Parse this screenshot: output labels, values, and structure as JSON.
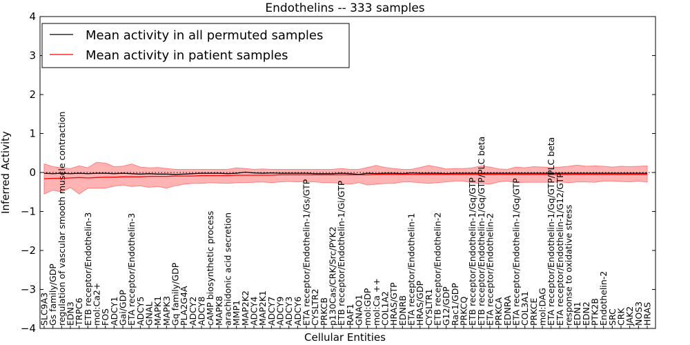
{
  "chart_data": {
    "type": "line",
    "title": "Endothelins -- 333 samples",
    "xlabel": "Cellular Entities",
    "ylabel": "Inferred Activity",
    "ylim": [
      -4,
      4
    ],
    "yticks": [
      "−4",
      "−3",
      "−2",
      "−1",
      "0",
      "1",
      "2",
      "3",
      "4"
    ],
    "reference_line_y": 0,
    "legend": {
      "placement": "top-left",
      "entries": [
        {
          "label": "Mean activity in all permuted samples",
          "color": "#000000"
        },
        {
          "label": "Mean activity in patient samples",
          "color": "#ff0000"
        }
      ]
    },
    "band_color": "#ff8080",
    "categories": [
      "SLC9A3",
      "Gs family/GDP",
      "regulation of vascular smooth muscle contraction",
      "EDN3",
      "TRPC6",
      "ETB receptor/Endothelin-3",
      "mol:Ca2+",
      "FOS",
      "ADCY1",
      "Gai/GDP",
      "ETA receptor/Endothelin-3",
      "ADCY5",
      "GNAL",
      "MAPK1",
      "MAPK3",
      "Gq family/GDP",
      "PLA2G4A",
      "ADCY2",
      "ADCY8",
      "cAMP biosynthetic process",
      "MAPK8",
      "arachidonic acid secretion",
      "MMP1",
      "MAP2K2",
      "ADCY4",
      "MAP2K1",
      "ADCY7",
      "ADCY9",
      "ADCY3",
      "ADCY6",
      "ETA receptor/Endothelin-1/Gs/GTP",
      "CYSLTR2",
      "PRKCB",
      "p130Cas/CRK/Src/PYK2",
      "ETB receptor/Endothelin-1/Gi/GTP",
      "RAF1",
      "GNAO1",
      "mol:GDP",
      "mol:Ca ++",
      "COL1A2",
      "HRAS/GTP",
      "EDNRB",
      "ETA receptor/Endothelin-1",
      "HRAS/GDP",
      "CYSLTR1",
      "ETB receptor/Endothelin-2",
      "G12/GDP",
      "Rac1/GDP",
      "PRKCQ",
      "ETB receptor/Endothelin-1/Gq/GTP",
      "ETB receptor/Endothelin-1/Gq/GTP/PLC beta",
      "ETA receptor/Endothelin-2",
      "PRKCA",
      "EDNRA",
      "ETA receptor/Endothelin-1/Gq/GTP",
      "COL3A1",
      "PRKCE",
      "mol:DAG",
      "ETA receptor/Endothelin-1/Gq/GTP/PLC beta",
      "ETA receptor/Endothelin-1/G12/GTP",
      "response to oxidative stress",
      "EDN1",
      "EDN2",
      "PTK2B",
      "Endothelin-2",
      "SRC",
      "CRK",
      "JAK2",
      "NOS3",
      "HRAS"
    ],
    "series": [
      {
        "name": "Mean activity in all permuted samples",
        "color": "#000000",
        "values": [
          -0.02,
          -0.03,
          -0.02,
          -0.03,
          -0.02,
          -0.03,
          -0.02,
          -0.02,
          -0.03,
          -0.02,
          -0.03,
          -0.04,
          -0.03,
          -0.04,
          -0.04,
          -0.05,
          -0.04,
          -0.03,
          -0.02,
          -0.02,
          -0.02,
          -0.03,
          -0.02,
          0.01,
          -0.01,
          -0.02,
          -0.01,
          -0.02,
          -0.02,
          -0.02,
          -0.02,
          -0.03,
          -0.03,
          -0.03,
          -0.02,
          -0.03,
          -0.05,
          -0.02,
          -0.03,
          -0.02,
          -0.02,
          -0.03,
          -0.01,
          -0.02,
          -0.02,
          -0.02,
          -0.03,
          -0.02,
          -0.02,
          -0.02,
          -0.02,
          -0.02,
          -0.02,
          -0.02,
          -0.02,
          -0.02,
          -0.02,
          -0.02,
          -0.02,
          -0.02,
          -0.02,
          -0.02,
          -0.02,
          -0.02,
          -0.02,
          -0.02,
          -0.02,
          -0.02,
          -0.02,
          -0.02
        ]
      },
      {
        "name": "Mean activity in patient samples",
        "color": "#ff0000",
        "values": [
          -0.16,
          -0.15,
          -0.15,
          -0.14,
          -0.13,
          -0.14,
          -0.13,
          -0.12,
          -0.12,
          -0.11,
          -0.11,
          -0.11,
          -0.1,
          -0.1,
          -0.1,
          -0.09,
          -0.09,
          -0.09,
          -0.08,
          -0.08,
          -0.08,
          -0.08,
          -0.07,
          -0.07,
          -0.07,
          -0.07,
          -0.07,
          -0.06,
          -0.06,
          -0.06,
          -0.06,
          -0.06,
          -0.06,
          -0.06,
          -0.06,
          -0.06,
          -0.06,
          -0.06,
          -0.05,
          -0.05,
          -0.05,
          -0.05,
          -0.05,
          -0.05,
          -0.05,
          -0.05,
          -0.05,
          -0.05,
          -0.05,
          -0.05,
          -0.05,
          -0.05,
          -0.05,
          -0.05,
          -0.05,
          -0.05,
          -0.05,
          -0.05,
          -0.05,
          -0.05,
          -0.05,
          -0.05,
          -0.05,
          -0.05,
          -0.05,
          -0.05,
          -0.05,
          -0.05,
          -0.05,
          -0.05
        ]
      }
    ],
    "band_upper": [
      0.22,
      0.15,
      0.12,
      0.1,
      0.17,
      0.12,
      0.26,
      0.24,
      0.15,
      0.16,
      0.22,
      0.14,
      0.12,
      0.13,
      0.1,
      0.08,
      0.08,
      0.08,
      0.08,
      0.08,
      0.08,
      0.08,
      0.12,
      0.1,
      0.08,
      0.09,
      0.08,
      0.08,
      0.08,
      0.08,
      0.08,
      0.08,
      0.08,
      0.08,
      0.1,
      0.08,
      0.08,
      0.13,
      0.18,
      0.13,
      0.1,
      0.08,
      0.08,
      0.13,
      0.18,
      0.14,
      0.09,
      0.1,
      0.1,
      0.12,
      0.17,
      0.14,
      0.09,
      0.08,
      0.14,
      0.12,
      0.15,
      0.14,
      0.13,
      0.14,
      0.16,
      0.19,
      0.16,
      0.17,
      0.16,
      0.14,
      0.16,
      0.15,
      0.16,
      0.17
    ],
    "band_lower": [
      -0.55,
      -0.45,
      -0.5,
      -0.38,
      -0.55,
      -0.4,
      -0.4,
      -0.4,
      -0.35,
      -0.32,
      -0.36,
      -0.34,
      -0.38,
      -0.36,
      -0.4,
      -0.34,
      -0.3,
      -0.28,
      -0.28,
      -0.26,
      -0.27,
      -0.28,
      -0.26,
      -0.26,
      -0.25,
      -0.24,
      -0.26,
      -0.24,
      -0.23,
      -0.24,
      -0.23,
      -0.24,
      -0.26,
      -0.26,
      -0.28,
      -0.3,
      -0.26,
      -0.32,
      -0.3,
      -0.28,
      -0.28,
      -0.24,
      -0.24,
      -0.26,
      -0.28,
      -0.26,
      -0.24,
      -0.22,
      -0.22,
      -0.26,
      -0.28,
      -0.3,
      -0.24,
      -0.22,
      -0.26,
      -0.25,
      -0.25,
      -0.25,
      -0.25,
      -0.24,
      -0.26,
      -0.24,
      -0.24,
      -0.25,
      -0.22,
      -0.22,
      -0.23,
      -0.24,
      -0.22,
      -0.25
    ]
  }
}
